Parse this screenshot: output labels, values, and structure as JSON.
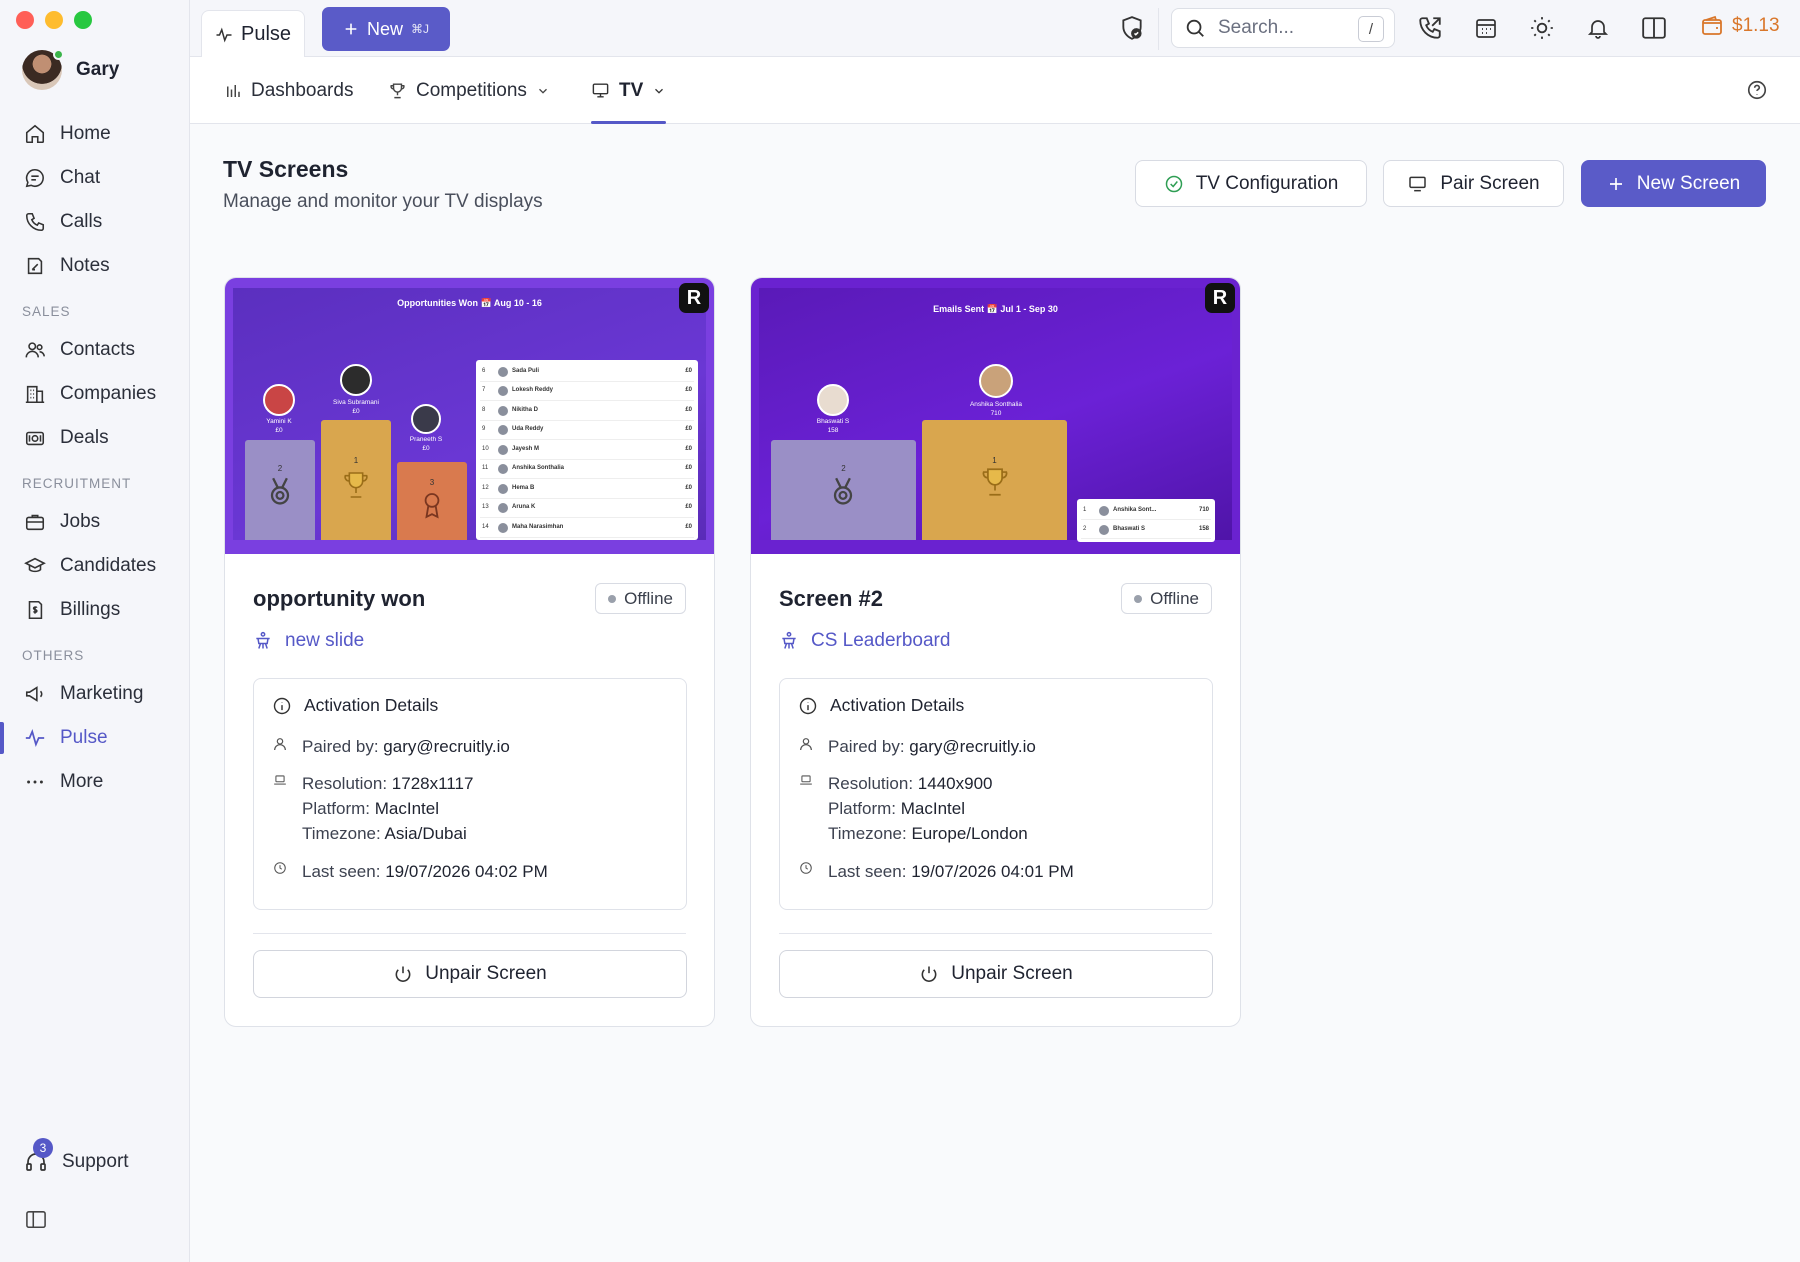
{
  "window": {
    "traffic_colors": [
      "#ff5f57",
      "#febc2e",
      "#28c840"
    ]
  },
  "user": {
    "name": "Gary"
  },
  "sidebar": {
    "main": [
      {
        "label": "Home",
        "icon": "home-icon"
      },
      {
        "label": "Chat",
        "icon": "chat-icon"
      },
      {
        "label": "Calls",
        "icon": "phone-icon"
      },
      {
        "label": "Notes",
        "icon": "notes-icon"
      }
    ],
    "sections": {
      "sales": "SALES",
      "recruitment": "RECRUITMENT",
      "others": "OTHERS"
    },
    "sales": [
      {
        "label": "Contacts",
        "icon": "contacts-icon"
      },
      {
        "label": "Companies",
        "icon": "building-icon"
      },
      {
        "label": "Deals",
        "icon": "deals-icon"
      }
    ],
    "recruitment": [
      {
        "label": "Jobs",
        "icon": "briefcase-icon"
      },
      {
        "label": "Candidates",
        "icon": "graduation-cap-icon"
      },
      {
        "label": "Billings",
        "icon": "billing-icon"
      }
    ],
    "others": [
      {
        "label": "Marketing",
        "icon": "megaphone-icon"
      },
      {
        "label": "Pulse",
        "icon": "pulse-icon",
        "active": true
      },
      {
        "label": "More",
        "icon": "more-icon"
      }
    ],
    "support": {
      "label": "Support",
      "badge": "3"
    }
  },
  "topbar": {
    "tab_label": "Pulse",
    "new_label": "New",
    "new_shortcut": "⌘J",
    "search_placeholder": "Search...",
    "search_shortcut": "/",
    "wallet": "$1.13"
  },
  "subnav": {
    "dashboards": "Dashboards",
    "competitions": "Competitions",
    "tv": "TV"
  },
  "page": {
    "title": "TV Screens",
    "subtitle": "Manage and monitor your TV displays",
    "tv_config": "TV Configuration",
    "pair_screen": "Pair Screen",
    "new_screen": "New Screen"
  },
  "cards": [
    {
      "title": "opportunity won",
      "status": "Offline",
      "slide": "new slide",
      "details_title": "Activation Details",
      "paired_label": "Paired by:",
      "paired_value": "gary@recruitly.io",
      "resolution_label": "Resolution:",
      "resolution_value": "1728x1117",
      "platform_label": "Platform:",
      "platform_value": "MacIntel",
      "timezone_label": "Timezone:",
      "timezone_value": "Asia/Dubai",
      "lastseen_label": "Last seen:",
      "lastseen_value": "19/07/2026 04:02 PM",
      "unpair": "Unpair Screen",
      "preview": {
        "header": "Opportunities Won   📅 Aug 10 - 16",
        "podium": [
          {
            "name": "Yamini K",
            "value": "£0",
            "rank": "2"
          },
          {
            "name": "Siva Subramani",
            "value": "£0",
            "rank": "1"
          },
          {
            "name": "Praneeth S",
            "value": "£0",
            "rank": "3"
          }
        ],
        "leaderboard": [
          {
            "rank": "6",
            "name": "Sada Puli",
            "value": "£0"
          },
          {
            "rank": "7",
            "name": "Lokesh Reddy",
            "value": "£0"
          },
          {
            "rank": "8",
            "name": "Nikitha D",
            "value": "£0"
          },
          {
            "rank": "9",
            "name": "Uda Reddy",
            "value": "£0"
          },
          {
            "rank": "10",
            "name": "Jayesh M",
            "value": "£0"
          },
          {
            "rank": "11",
            "name": "Anshika Sonthalia",
            "value": "£0"
          },
          {
            "rank": "12",
            "name": "Hema B",
            "value": "£0"
          },
          {
            "rank": "13",
            "name": "Aruna K",
            "value": "£0"
          },
          {
            "rank": "14",
            "name": "Maha Narasimhan",
            "value": "£0"
          }
        ]
      }
    },
    {
      "title": "Screen #2",
      "status": "Offline",
      "slide": "CS Leaderboard",
      "details_title": "Activation Details",
      "paired_label": "Paired by:",
      "paired_value": "gary@recruitly.io",
      "resolution_label": "Resolution:",
      "resolution_value": "1440x900",
      "platform_label": "Platform:",
      "platform_value": "MacIntel",
      "timezone_label": "Timezone:",
      "timezone_value": "Europe/London",
      "lastseen_label": "Last seen:",
      "lastseen_value": "19/07/2026 04:01 PM",
      "unpair": "Unpair Screen",
      "preview": {
        "header": "Emails Sent   📅 Jul 1 - Sep 30",
        "podium": [
          {
            "name": "Bhaswati S",
            "value": "158",
            "rank": "2"
          },
          {
            "name": "Anshika Sonthalia",
            "value": "710",
            "rank": "1"
          }
        ],
        "leaderboard": [
          {
            "rank": "1",
            "name": "Anshika Sont...",
            "value": "710"
          },
          {
            "rank": "2",
            "name": "Bhaswati S",
            "value": "158"
          }
        ]
      }
    }
  ]
}
